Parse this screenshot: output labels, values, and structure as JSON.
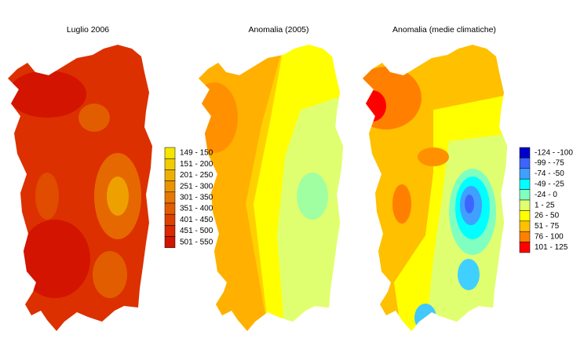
{
  "maps": [
    {
      "title": "Luglio 2006",
      "legend": [
        {
          "label": "149 - 150",
          "color": "#f5e600"
        },
        {
          "label": "151 - 200",
          "color": "#f2cc00"
        },
        {
          "label": "201 - 250",
          "color": "#eeb000"
        },
        {
          "label": "251 - 300",
          "color": "#ea9400"
        },
        {
          "label": "301 - 350",
          "color": "#e67800"
        },
        {
          "label": "351 - 400",
          "color": "#e25c00"
        },
        {
          "label": "401 - 450",
          "color": "#de4000"
        },
        {
          "label": "451 - 500",
          "color": "#da2800"
        },
        {
          "label": "501 - 550",
          "color": "#d21400"
        }
      ]
    },
    {
      "title": "Anomalia (2005)"
    },
    {
      "title": "Anomalia (medie climatiche)",
      "legend": [
        {
          "label": "-124 - -100",
          "color": "#0000c8"
        },
        {
          "label": "-99 - -75",
          "color": "#3c64ff"
        },
        {
          "label": "-74 - -50",
          "color": "#40a0ff"
        },
        {
          "label": "-49 - -25",
          "color": "#00ffff"
        },
        {
          "label": "-24 - 0",
          "color": "#80ffc0"
        },
        {
          "label": "1 - 25",
          "color": "#e0ff70"
        },
        {
          "label": "26 - 50",
          "color": "#ffff00"
        },
        {
          "label": "51 - 75",
          "color": "#ffc000"
        },
        {
          "label": "76 - 100",
          "color": "#ff8000"
        },
        {
          "label": "101 - 125",
          "color": "#ff0000"
        }
      ]
    }
  ]
}
